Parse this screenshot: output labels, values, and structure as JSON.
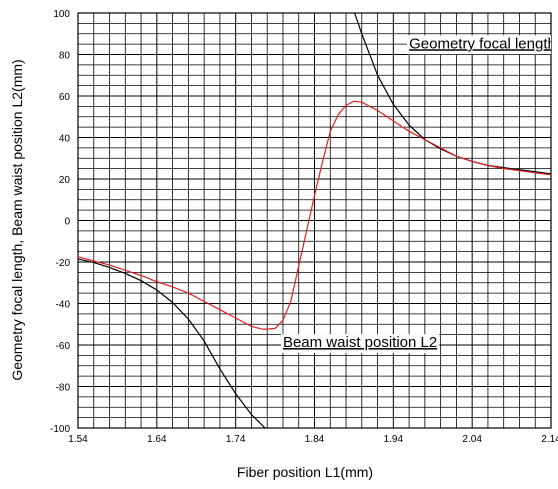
{
  "chart_data": {
    "type": "line",
    "xlabel": "Fiber position  L1(mm)",
    "ylabel": "Geometry focal length, Beam waist position L2(mm)",
    "xlim": [
      1.54,
      2.14
    ],
    "ylim": [
      -100,
      100
    ],
    "x_ticks": [
      "1.54",
      "1.64",
      "1.74",
      "1.84",
      "1.94",
      "2.04",
      "2.14"
    ],
    "y_ticks": [
      "100",
      "80",
      "60",
      "40",
      "20",
      "0",
      "-20",
      "-40",
      "-60",
      "-80",
      "-100"
    ],
    "grid": true,
    "series": [
      {
        "name": "Geometry focal length",
        "color": "#000000",
        "branches": [
          [
            [
              1.54,
              -18.5
            ],
            [
              1.56,
              -20.3
            ],
            [
              1.58,
              -22.6
            ],
            [
              1.6,
              -25.5
            ],
            [
              1.62,
              -29.0
            ],
            [
              1.64,
              -33.5
            ],
            [
              1.66,
              -39.5
            ],
            [
              1.68,
              -47.5
            ],
            [
              1.7,
              -58.0
            ],
            [
              1.72,
              -71.5
            ],
            [
              1.74,
              -83.5
            ],
            [
              1.76,
              -93.5
            ],
            [
              1.78,
              -101
            ]
          ],
          [
            [
              1.89,
              101
            ],
            [
              1.9,
              90.0
            ],
            [
              1.92,
              70.0
            ],
            [
              1.94,
              56.0
            ],
            [
              1.96,
              46.0
            ],
            [
              1.98,
              39.0
            ],
            [
              2.0,
              34.5
            ],
            [
              2.02,
              31.0
            ],
            [
              2.04,
              28.5
            ],
            [
              2.06,
              26.5
            ],
            [
              2.08,
              25.5
            ],
            [
              2.1,
              24.5
            ],
            [
              2.12,
              23.5
            ],
            [
              2.14,
              22.5
            ]
          ]
        ]
      },
      {
        "name": "Beam waist position L2",
        "color": "#e02020",
        "points": [
          [
            1.54,
            -17.5
          ],
          [
            1.56,
            -19.5
          ],
          [
            1.58,
            -21.5
          ],
          [
            1.6,
            -24.0
          ],
          [
            1.62,
            -26.5
          ],
          [
            1.64,
            -29.5
          ],
          [
            1.66,
            -32.0
          ],
          [
            1.68,
            -35.0
          ],
          [
            1.7,
            -39.0
          ],
          [
            1.72,
            -43.0
          ],
          [
            1.74,
            -47.0
          ],
          [
            1.76,
            -51.0
          ],
          [
            1.775,
            -52.5
          ],
          [
            1.79,
            -52.0
          ],
          [
            1.8,
            -48.0
          ],
          [
            1.81,
            -39.0
          ],
          [
            1.82,
            -22.0
          ],
          [
            1.83,
            -5.0
          ],
          [
            1.84,
            12.0
          ],
          [
            1.85,
            28.0
          ],
          [
            1.86,
            43.0
          ],
          [
            1.87,
            51.0
          ],
          [
            1.88,
            55.5
          ],
          [
            1.89,
            57.5
          ],
          [
            1.9,
            57.0
          ],
          [
            1.92,
            53.0
          ],
          [
            1.94,
            48.0
          ],
          [
            1.96,
            43.0
          ],
          [
            1.98,
            39.0
          ],
          [
            2.0,
            35.0
          ],
          [
            2.02,
            31.0
          ],
          [
            2.04,
            28.5
          ],
          [
            2.06,
            26.5
          ],
          [
            2.08,
            25.0
          ],
          [
            2.1,
            24.0
          ],
          [
            2.12,
            23.0
          ],
          [
            2.14,
            22.0
          ]
        ]
      }
    ],
    "annotations": [
      {
        "text": "Geometry focal length",
        "x": 1.96,
        "y": 83
      },
      {
        "text": "Beam waist position L2",
        "x": 1.8,
        "y": -61
      }
    ]
  }
}
